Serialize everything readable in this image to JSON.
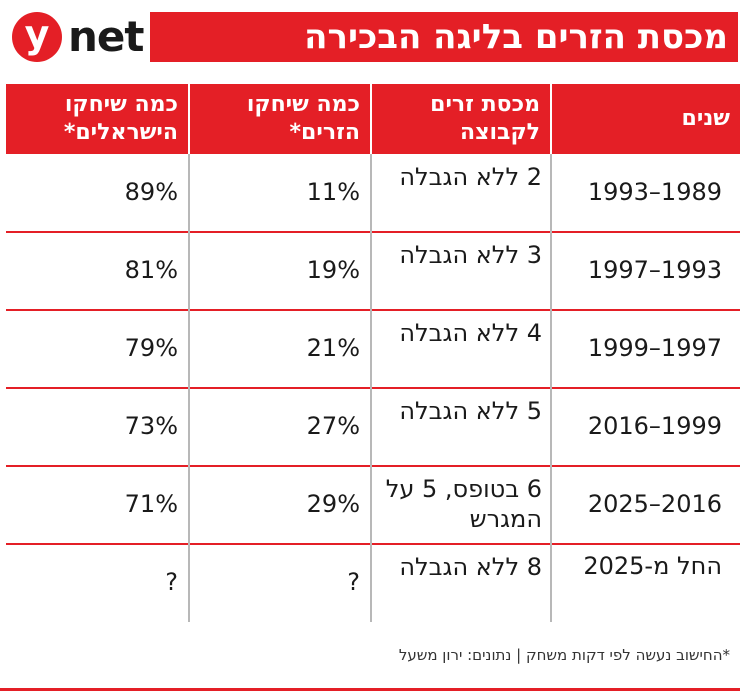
{
  "brand": {
    "logo_letter": "y",
    "logo_word": "net",
    "accent_color": "#e41f26"
  },
  "title": "מכסת הזרים בליגה הבכירה",
  "headers": {
    "years": "שנים",
    "quota": "מכסת זרים לקבוצה",
    "foreign": "כמה שיחקו הזרים*",
    "israeli": "כמה שיחקו הישראלים*"
  },
  "rows": [
    {
      "years": "1993–1989",
      "quota": "2 ללא הגבלה",
      "foreign": "11%",
      "israeli": "89%"
    },
    {
      "years": "1997–1993",
      "quota": "3 ללא הגבלה",
      "foreign": "19%",
      "israeli": "81%"
    },
    {
      "years": "1999–1997",
      "quota": "4 ללא הגבלה",
      "foreign": "21%",
      "israeli": "79%"
    },
    {
      "years": "2016–1999",
      "quota": "5 ללא הגבלה",
      "foreign": "27%",
      "israeli": "73%"
    },
    {
      "years": "2025–2016",
      "quota": "6 בטופס, 5 על המגרש",
      "foreign": "29%",
      "israeli": "71%"
    },
    {
      "years": "החל מ-2025",
      "quota": "8 ללא הגבלה",
      "foreign": "?",
      "israeli": "?"
    }
  ],
  "footnote": "*החישוב נעשה לפי דקות משחק | נתונים: ירון משעל"
}
